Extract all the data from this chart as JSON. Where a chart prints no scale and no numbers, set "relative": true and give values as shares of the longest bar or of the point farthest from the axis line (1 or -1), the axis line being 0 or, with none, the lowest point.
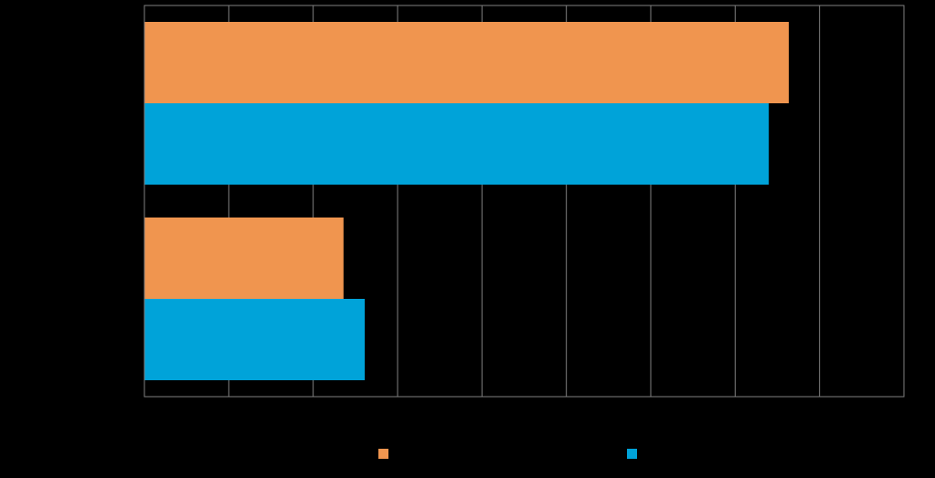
{
  "chart_data": {
    "type": "bar",
    "orientation": "horizontal",
    "relative": true,
    "categories": [
      null,
      null
    ],
    "series": [
      {
        "color": "#f0954f",
        "values": [
          1,
          0.309
        ]
      },
      {
        "color": "#00a3d9",
        "values": [
          0.969,
          0.342
        ]
      }
    ],
    "grid": "x"
  }
}
